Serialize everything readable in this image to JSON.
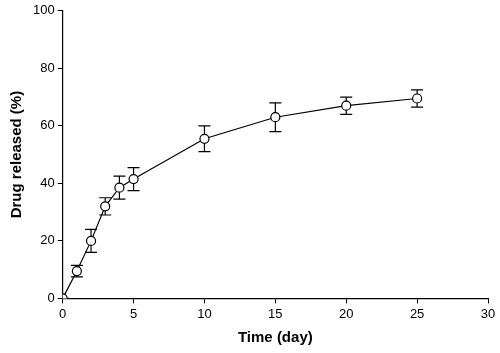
{
  "chart_data": {
    "type": "line",
    "x_label": "Time (day)",
    "y_label": "Drug released (%)",
    "x": [
      0,
      1,
      2,
      3,
      4,
      5,
      10,
      15,
      20,
      25
    ],
    "values": [
      0,
      9.5,
      20,
      32,
      38.5,
      41.5,
      55.5,
      63,
      67,
      69.5
    ],
    "errors": [
      0,
      2,
      4,
      3,
      4,
      4,
      4.5,
      5,
      3,
      3
    ],
    "color": "#000000",
    "marker": "circle",
    "line_style": "solid",
    "xlim": [
      0,
      30
    ],
    "xticks": [
      0,
      5,
      10,
      15,
      20,
      25,
      30
    ],
    "ylim": [
      0,
      100
    ],
    "yticks": [
      0,
      20,
      40,
      60,
      80,
      100
    ],
    "grid": false
  }
}
